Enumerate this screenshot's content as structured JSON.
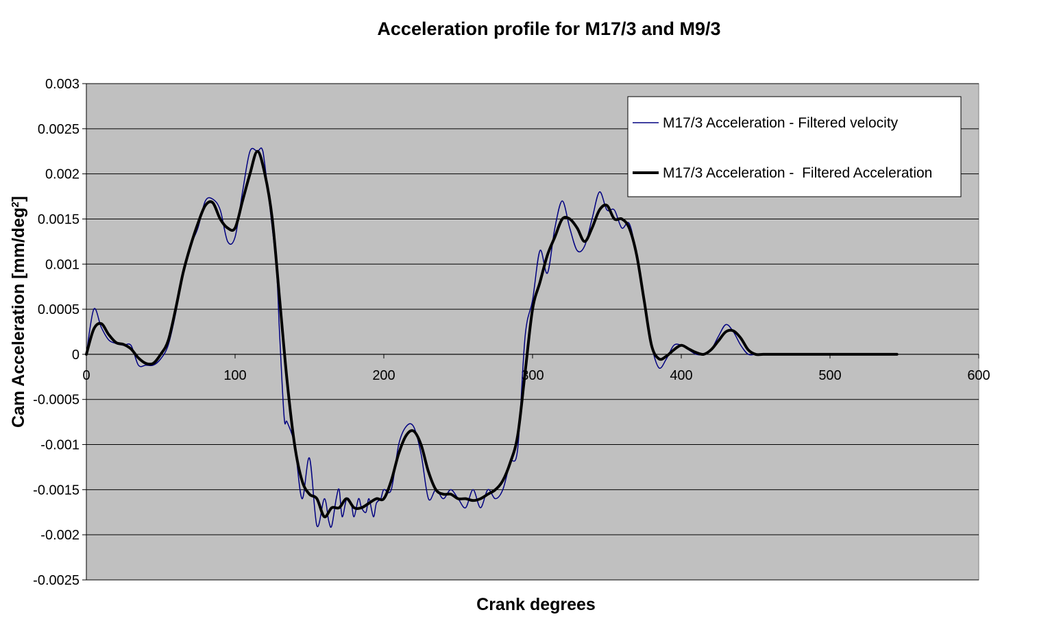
{
  "chart_data": {
    "type": "line",
    "title": "Acceleration profile for M17/3 and M9/3",
    "xlabel": "Crank degrees",
    "ylabel_main": "Cam Acceleration [mm/deg",
    "ylabel_sup": "2",
    "ylabel_end": "]",
    "xlim": [
      0,
      600
    ],
    "ylim": [
      -0.0025,
      0.003
    ],
    "x_ticks": [
      0,
      100,
      200,
      300,
      400,
      500,
      600
    ],
    "x_tick_labels": [
      "0",
      "100",
      "200",
      "300",
      "400",
      "500",
      "600"
    ],
    "y_ticks": [
      0.003,
      0.0025,
      0.002,
      0.0015,
      0.001,
      0.0005,
      0,
      -0.0005,
      -0.001,
      -0.0015,
      -0.002,
      -0.0025
    ],
    "y_tick_labels": [
      "0.003",
      "0.0025",
      "0.002",
      "0.0015",
      "0.001",
      "0.0005",
      "0",
      "-0.0005",
      "-0.001",
      "-0.0015",
      "-0.002",
      "-0.0025"
    ],
    "grid": "horizontal",
    "plot_background": "#c0c0c0",
    "legend_position": "top-right",
    "series": [
      {
        "name": "M17/3 Acceleration - Filtered velocity",
        "color": "#000080",
        "x": [
          0,
          5,
          10,
          15,
          20,
          25,
          30,
          35,
          40,
          45,
          50,
          55,
          60,
          65,
          70,
          75,
          80,
          85,
          90,
          95,
          100,
          105,
          110,
          115,
          118,
          120,
          125,
          128,
          130,
          133,
          135,
          140,
          145,
          150,
          155,
          160,
          163,
          165,
          168,
          170,
          172,
          175,
          178,
          180,
          183,
          185,
          188,
          190,
          193,
          195,
          198,
          200,
          205,
          210,
          215,
          220,
          225,
          230,
          235,
          240,
          245,
          250,
          255,
          260,
          265,
          270,
          275,
          280,
          285,
          290,
          295,
          300,
          305,
          310,
          315,
          320,
          325,
          330,
          335,
          340,
          345,
          350,
          355,
          360,
          365,
          370,
          375,
          380,
          385,
          390,
          395,
          400,
          405,
          410,
          415,
          420,
          425,
          430,
          435,
          440,
          445,
          450,
          455,
          460,
          500,
          545
        ],
        "y": [
          0.0,
          0.0005,
          0.0003,
          0.00016,
          0.00012,
          0.0001,
          0.0001,
          -0.00012,
          -0.00012,
          -0.00012,
          -5e-05,
          0.0001,
          0.00045,
          0.0009,
          0.0012,
          0.0014,
          0.0017,
          0.00172,
          0.0016,
          0.00125,
          0.0013,
          0.0018,
          0.00225,
          0.00225,
          0.00228,
          0.0021,
          0.0014,
          0.0009,
          0.0002,
          -0.0007,
          -0.00075,
          -0.001,
          -0.0016,
          -0.00115,
          -0.0019,
          -0.0016,
          -0.00185,
          -0.0019,
          -0.0016,
          -0.0015,
          -0.0018,
          -0.0016,
          -0.00165,
          -0.0018,
          -0.0016,
          -0.0017,
          -0.00175,
          -0.0016,
          -0.0018,
          -0.00165,
          -0.0016,
          -0.0015,
          -0.0015,
          -0.001,
          -0.0008,
          -0.0008,
          -0.0011,
          -0.0016,
          -0.0015,
          -0.0016,
          -0.0015,
          -0.0016,
          -0.0017,
          -0.0015,
          -0.0017,
          -0.0015,
          -0.0016,
          -0.0015,
          -0.0012,
          -0.00105,
          0.0002,
          0.0006,
          0.00115,
          0.0009,
          0.0014,
          0.0017,
          0.0014,
          0.00115,
          0.0012,
          0.0015,
          0.0018,
          0.0016,
          0.0016,
          0.0014,
          0.00145,
          0.0011,
          0.0006,
          0.0001,
          -0.00015,
          -5e-05,
          0.0001,
          0.0001,
          5e-05,
          0.0,
          0.0,
          5e-05,
          0.0002,
          0.00033,
          0.00025,
          0.0001,
          0.0,
          0.0,
          0.0,
          0.0,
          0.0,
          0.0
        ]
      },
      {
        "name": "M17/3 Acceleration -  Filtered Acceleration",
        "color": "#000000",
        "x": [
          0,
          5,
          10,
          15,
          20,
          25,
          30,
          35,
          40,
          45,
          50,
          55,
          60,
          65,
          70,
          75,
          80,
          85,
          90,
          95,
          100,
          105,
          110,
          115,
          120,
          125,
          130,
          135,
          140,
          145,
          150,
          155,
          160,
          165,
          170,
          175,
          180,
          185,
          190,
          195,
          200,
          205,
          210,
          215,
          220,
          225,
          230,
          235,
          240,
          245,
          250,
          255,
          260,
          265,
          270,
          275,
          280,
          285,
          290,
          295,
          300,
          305,
          310,
          315,
          320,
          325,
          330,
          335,
          340,
          345,
          350,
          355,
          360,
          365,
          370,
          375,
          380,
          385,
          390,
          395,
          400,
          405,
          410,
          415,
          420,
          425,
          430,
          435,
          440,
          445,
          450,
          455,
          460,
          500,
          545
        ],
        "y": [
          0.0,
          0.00028,
          0.00034,
          0.00022,
          0.00013,
          0.00011,
          6e-05,
          -4e-05,
          -0.0001,
          -0.0001,
          0.0,
          0.00015,
          0.0005,
          0.0009,
          0.0012,
          0.00145,
          0.00165,
          0.00168,
          0.0015,
          0.0014,
          0.0014,
          0.0017,
          0.002,
          0.00225,
          0.002,
          0.0015,
          0.0006,
          -0.0003,
          -0.001,
          -0.0014,
          -0.00155,
          -0.0016,
          -0.0018,
          -0.0017,
          -0.0017,
          -0.0016,
          -0.0017,
          -0.0017,
          -0.00165,
          -0.0016,
          -0.0016,
          -0.0014,
          -0.0011,
          -0.0009,
          -0.00085,
          -0.001,
          -0.0013,
          -0.0015,
          -0.00155,
          -0.00155,
          -0.0016,
          -0.0016,
          -0.00162,
          -0.0016,
          -0.00155,
          -0.0015,
          -0.0014,
          -0.0012,
          -0.0009,
          -0.0002,
          0.0005,
          0.0008,
          0.0011,
          0.0013,
          0.0015,
          0.0015,
          0.0014,
          0.00125,
          0.0014,
          0.0016,
          0.00165,
          0.0015,
          0.0015,
          0.0014,
          0.0011,
          0.0006,
          0.0001,
          -5e-05,
          -2e-05,
          5e-05,
          0.0001,
          6e-05,
          2e-05,
          0.0,
          5e-05,
          0.00015,
          0.00025,
          0.00026,
          0.00018,
          5e-05,
          0.0,
          0.0,
          0.0,
          0.0,
          0.0
        ]
      }
    ]
  }
}
